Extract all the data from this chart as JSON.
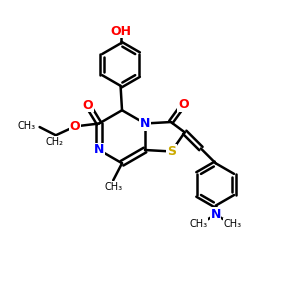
{
  "bg_color": "#ffffff",
  "bond_color": "#000000",
  "bond_width": 1.8,
  "atom_colors": {
    "O": "#ff0000",
    "N": "#0000ff",
    "S": "#ccaa00",
    "C": "#000000"
  },
  "font_size": 9,
  "figsize": [
    3.0,
    3.0
  ],
  "dpi": 100,
  "xlim": [
    0,
    10
  ],
  "ylim": [
    0,
    10
  ]
}
